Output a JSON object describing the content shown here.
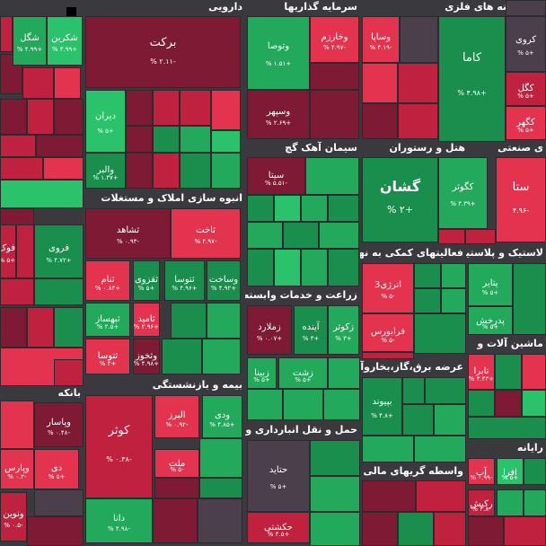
{
  "colors": {
    "dg": "#1a8e4c",
    "g": "#22a95b",
    "lg": "#2bc26c",
    "dr": "#7e1a34",
    "r": "#c0213f",
    "lr": "#e3334f",
    "n": "#4b3f4b",
    "bg": "#3a3a3e"
  },
  "icons": {
    "corner": "square-icon"
  },
  "sectors": [
    {
      "k": "daruyi",
      "label": "دارویی"
    },
    {
      "k": "sarmayeh",
      "label": "سرمایه گذاریها"
    },
    {
      "k": "estekhraj",
      "label": "خراج کانه های فلزی"
    },
    {
      "k": "siman",
      "label": "سیمان آهک گچ"
    },
    {
      "k": "hotel",
      "label": "هتل و رستوران"
    },
    {
      "k": "sanati",
      "label": "ی صنعتی"
    },
    {
      "k": "anbooh",
      "label": "انبوه سازی املاک و مستغلات"
    },
    {
      "k": "faaliyat",
      "label": "فعالیتهای کمکی به نهاد"
    },
    {
      "k": "lastik",
      "label": "لاستیک و پلاستیک"
    },
    {
      "k": "zeraat",
      "label": "زراعت و خدمات وابسته"
    },
    {
      "k": "arzeh",
      "label": "عرضه برق،گاز،بخاروآب"
    },
    {
      "k": "mashin",
      "label": "ماشین آلات و"
    },
    {
      "k": "bimeh",
      "label": "بیمه و بازنشستگی"
    },
    {
      "k": "bank",
      "label": "بانکه"
    },
    {
      "k": "haml",
      "label": "حمل و نقل انبارداری و"
    },
    {
      "k": "rayaneh",
      "label": "رایانه"
    },
    {
      "k": "vaseteh",
      "label": "واسطه گریهای مالی و"
    }
  ],
  "tiles": [
    {
      "s": "شکربن",
      "p": "+۳.۹۹ %"
    },
    {
      "s": "شگل",
      "p": "+۴.۹۹ %"
    },
    {
      "s": "برکت",
      "p": "-۲.۱۱ %"
    },
    {
      "s": "دیران",
      "p": "+۵ %"
    },
    {
      "s": "والبر",
      "p": "+۱.۳۷ %"
    },
    {
      "s": "وتوصا",
      "p": "+۱.۵۱ %"
    },
    {
      "s": "وخارزم",
      "p": "-۴.۹۷ %"
    },
    {
      "s": "وساپا",
      "p": "-۴.۱۹ %"
    },
    {
      "s": "وسپهر",
      "p": "+۲.۶۹ %"
    },
    {
      "s": "کروی",
      "p": "+۵ %"
    },
    {
      "s": "کاما",
      "p": "+۴.۹۸ %"
    },
    {
      "s": "کگل",
      "p": "+۵ %"
    },
    {
      "s": "کگهر",
      "p": "+۵ %"
    },
    {
      "s": "سیتا",
      "p": "-۵.۵۱ %"
    },
    {
      "s": "گشان",
      "p": "+۲ %"
    },
    {
      "s": "کگوثر",
      "p": "+۴.۳۹ %"
    },
    {
      "s": "ستا",
      "p": "-۴.۹۶"
    },
    {
      "s": "ثشاهد",
      "p": "-۰.۹۳ %"
    },
    {
      "s": "ثاخت",
      "p": "-۴.۹۷ %"
    },
    {
      "s": "ثنام",
      "p": "+۰.۸۳ %"
    },
    {
      "s": "ثقزوی",
      "p": "+۵ %"
    },
    {
      "s": "ثتوسا",
      "p": "+۴.۹۶ %"
    },
    {
      "s": "وساخت",
      "p": "+۴.۹۲ %"
    },
    {
      "s": "ثبهساز",
      "p": "+۲.۵ %"
    },
    {
      "s": "ثامید",
      "p": "+۲.۹۶ %"
    },
    {
      "s": "ثتوسا",
      "p": "+۳ %"
    },
    {
      "s": "وثخوز",
      "p": "+۴.۹۸ %"
    },
    {
      "s": "انرژی3",
      "p": "-۵ %"
    },
    {
      "s": "فرابورس",
      "p": "-۵ %"
    },
    {
      "s": "پتایر",
      "p": "+۵ %"
    },
    {
      "s": "پدرخش",
      "p": "+۵ %"
    },
    {
      "s": "زملارد",
      "p": "+۰.۰۷ %"
    },
    {
      "s": "آینده",
      "p": "+۳ %"
    },
    {
      "s": "زکوثر",
      "p": "+۳ %"
    },
    {
      "s": "زشت",
      "p": "+۵ %"
    },
    {
      "s": "زبینا",
      "p": "+۵ %"
    },
    {
      "s": "بپیوند",
      "p": "+۴.۸ %"
    },
    {
      "s": "تابرا",
      "p": "+۳.۴۳ %"
    },
    {
      "s": "فروی",
      "p": "+۴.۷۲ %"
    },
    {
      "s": "فوک",
      "p": "+۵ %"
    },
    {
      "s": "کوثر",
      "p": "-۰.۳۸ %"
    },
    {
      "s": "البرز",
      "p": "-۰.۹۲ %"
    },
    {
      "s": "ودی",
      "p": "+۴.۸۵ %"
    },
    {
      "s": "ملت",
      "p": "-۵ %"
    },
    {
      "s": "دانا",
      "p": "-۴.۹۸ %"
    },
    {
      "s": "وپاسار",
      "p": "-۰.۴۸ %"
    },
    {
      "s": "دی",
      "p": "+۵ %"
    },
    {
      "s": "وپارس",
      "p": "-۰.۲ %"
    },
    {
      "s": "ونوین",
      "p": "-۰.۵ %"
    },
    {
      "s": "حتاید",
      "p": "+۵ %"
    },
    {
      "s": "حکشتی",
      "p": "+۴.۵ %"
    },
    {
      "s": "آپ",
      "p": "-۰.۹۹ %"
    },
    {
      "s": "افرا",
      "p": "+۵ %"
    },
    {
      "s": "رکیش",
      "p": "-۴.۸ %"
    }
  ]
}
